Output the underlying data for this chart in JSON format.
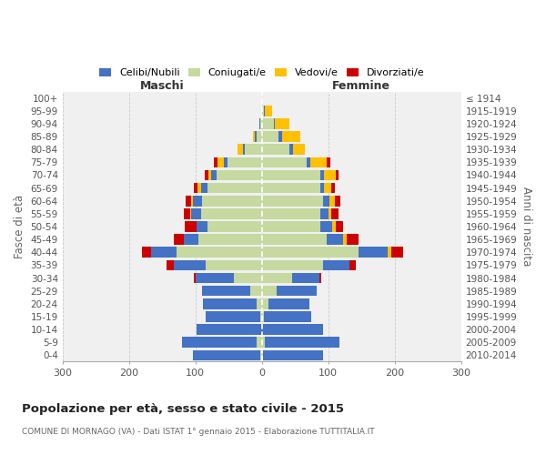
{
  "age_groups": [
    "0-4",
    "5-9",
    "10-14",
    "15-19",
    "20-24",
    "25-29",
    "30-34",
    "35-39",
    "40-44",
    "45-49",
    "50-54",
    "55-59",
    "60-64",
    "65-69",
    "70-74",
    "75-79",
    "80-84",
    "85-89",
    "90-94",
    "95-99",
    "100+"
  ],
  "birth_years": [
    "2010-2014",
    "2005-2009",
    "2000-2004",
    "1995-1999",
    "1990-1994",
    "1985-1989",
    "1980-1984",
    "1975-1979",
    "1970-1974",
    "1965-1969",
    "1960-1964",
    "1955-1959",
    "1950-1954",
    "1945-1949",
    "1940-1944",
    "1935-1939",
    "1930-1934",
    "1925-1929",
    "1920-1924",
    "1915-1919",
    "≤ 1914"
  ],
  "colors": {
    "celibi": "#4472c4",
    "coniugati": "#c5d9a0",
    "vedovi": "#ffc000",
    "divorziati": "#cc0000"
  },
  "maschi": {
    "celibi": [
      102,
      112,
      98,
      82,
      80,
      72,
      58,
      48,
      38,
      22,
      16,
      14,
      13,
      10,
      8,
      5,
      3,
      2,
      1,
      0,
      0
    ],
    "coniugati": [
      2,
      8,
      0,
      2,
      8,
      18,
      42,
      85,
      128,
      95,
      82,
      92,
      90,
      82,
      68,
      52,
      25,
      8,
      3,
      0,
      0
    ],
    "vedovi": [
      0,
      0,
      0,
      0,
      0,
      0,
      0,
      0,
      0,
      0,
      0,
      2,
      3,
      5,
      5,
      10,
      8,
      3,
      0,
      0,
      0
    ],
    "divorziati": [
      0,
      0,
      0,
      0,
      0,
      0,
      2,
      10,
      15,
      15,
      18,
      10,
      8,
      5,
      5,
      5,
      0,
      0,
      0,
      0,
      0
    ]
  },
  "femmine": {
    "nubili": [
      90,
      112,
      92,
      72,
      62,
      60,
      42,
      40,
      45,
      25,
      18,
      12,
      10,
      5,
      5,
      5,
      5,
      5,
      2,
      2,
      0
    ],
    "coniugati": [
      2,
      5,
      0,
      3,
      10,
      22,
      45,
      92,
      145,
      98,
      88,
      88,
      92,
      88,
      88,
      68,
      42,
      25,
      18,
      3,
      0
    ],
    "vedovi": [
      0,
      0,
      0,
      0,
      0,
      0,
      0,
      0,
      5,
      5,
      5,
      5,
      8,
      12,
      18,
      25,
      18,
      28,
      22,
      10,
      0
    ],
    "divorziati": [
      0,
      0,
      0,
      0,
      0,
      0,
      2,
      10,
      18,
      18,
      12,
      10,
      8,
      5,
      5,
      5,
      0,
      0,
      0,
      0,
      0
    ]
  },
  "xlim": 300,
  "title": "Popolazione per età, sesso e stato civile - 2015",
  "subtitle": "COMUNE DI MORNAGO (VA) - Dati ISTAT 1° gennaio 2015 - Elaborazione TUTTITALIA.IT",
  "ylabel_left": "Fasce di età",
  "ylabel_right": "Anni di nascita",
  "maschi_label": "Maschi",
  "femmine_label": "Femmine",
  "legend_labels": [
    "Celibi/Nubili",
    "Coniugati/e",
    "Vedovi/e",
    "Divorziati/e"
  ],
  "background_color": "#ffffff",
  "plot_bg_color": "#f0f0f0",
  "grid_color": "#cccccc"
}
